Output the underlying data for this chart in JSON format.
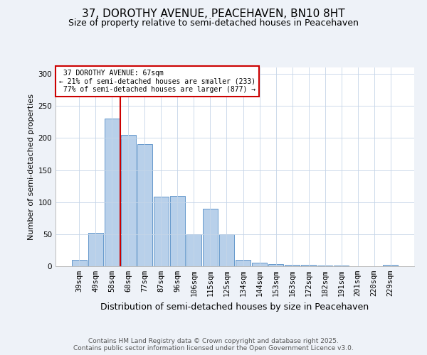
{
  "title": "37, DOROTHY AVENUE, PEACEHAVEN, BN10 8HT",
  "subtitle": "Size of property relative to semi-detached houses in Peacehaven",
  "xlabel": "Distribution of semi-detached houses by size in Peacehaven",
  "ylabel": "Number of semi-detached properties",
  "categories": [
    "39sqm",
    "49sqm",
    "58sqm",
    "68sqm",
    "77sqm",
    "87sqm",
    "96sqm",
    "106sqm",
    "115sqm",
    "125sqm",
    "134sqm",
    "144sqm",
    "153sqm",
    "163sqm",
    "172sqm",
    "182sqm",
    "191sqm",
    "201sqm",
    "220sqm",
    "229sqm"
  ],
  "values": [
    10,
    52,
    230,
    205,
    190,
    108,
    110,
    50,
    90,
    50,
    10,
    5,
    3,
    2,
    2,
    1,
    1,
    0,
    0,
    2
  ],
  "bar_color": "#b8d0ea",
  "bar_edge_color": "#6699cc",
  "property_label": "37 DOROTHY AVENUE: 67sqm",
  "pct_smaller": 21,
  "n_smaller": 233,
  "pct_larger": 77,
  "n_larger": 877,
  "vline_color": "#cc0000",
  "annotation_box_color": "#cc0000",
  "ylim": [
    0,
    310
  ],
  "yticks": [
    0,
    50,
    100,
    150,
    200,
    250,
    300
  ],
  "footer_line1": "Contains HM Land Registry data © Crown copyright and database right 2025.",
  "footer_line2": "Contains public sector information licensed under the Open Government Licence v3.0.",
  "bg_color": "#eef2f8",
  "plot_bg_color": "#ffffff",
  "title_fontsize": 11,
  "subtitle_fontsize": 9,
  "xlabel_fontsize": 9,
  "ylabel_fontsize": 8,
  "tick_fontsize": 7.5,
  "footer_fontsize": 6.5,
  "annot_fontsize": 7
}
